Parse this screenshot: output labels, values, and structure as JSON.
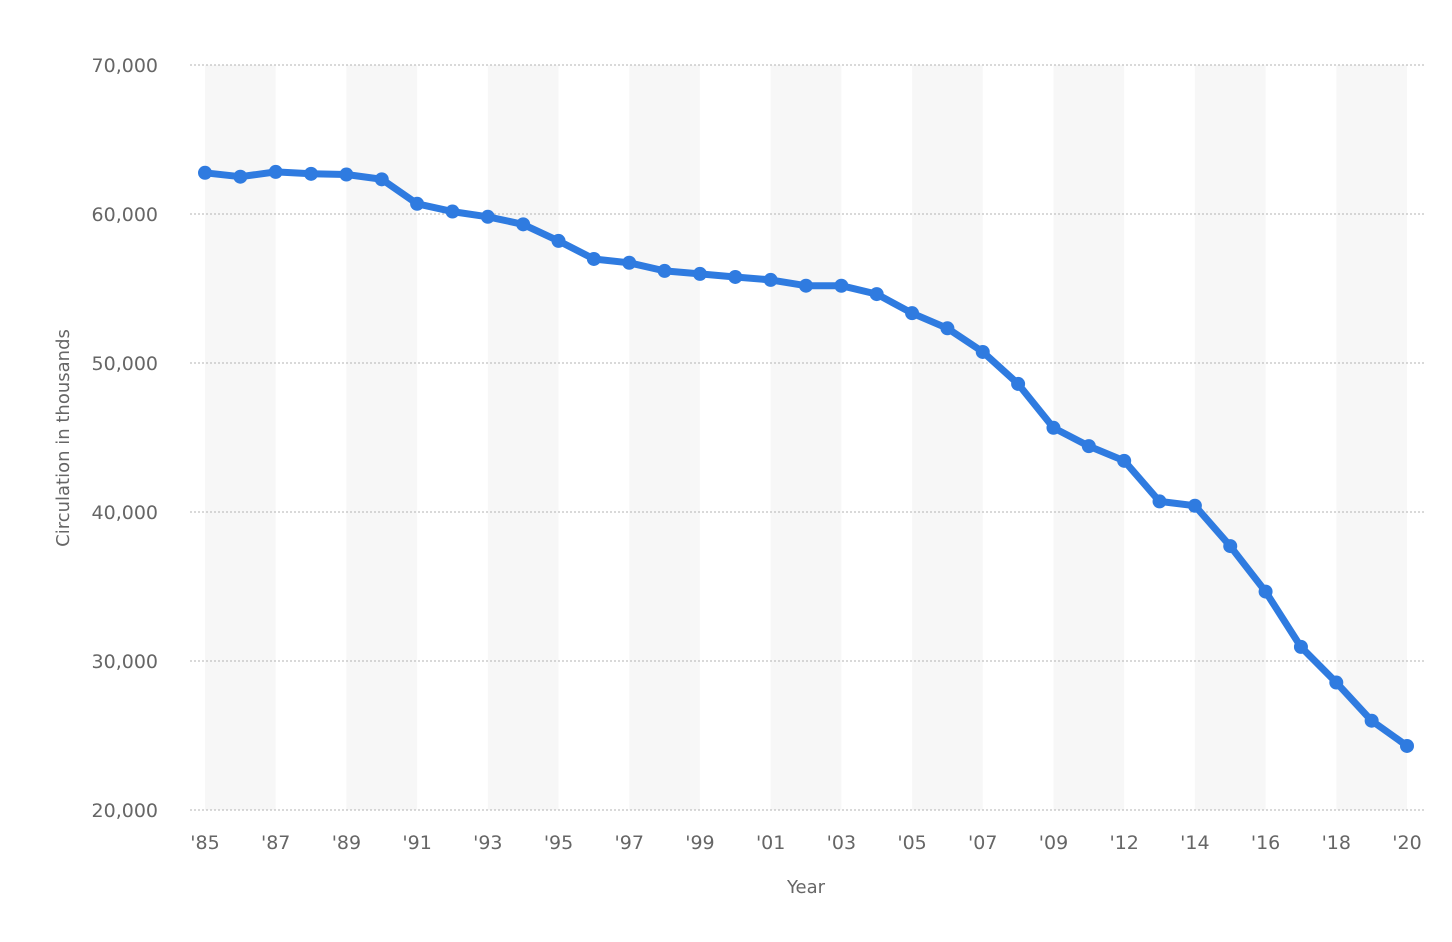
{
  "chart_data": {
    "type": "line",
    "xlabel": "Year",
    "ylabel": "Circulation in thousands",
    "ylim": [
      20000,
      70000
    ],
    "yticks": [
      20000,
      30000,
      40000,
      50000,
      60000,
      70000
    ],
    "ytick_labels": [
      "20,000",
      "30,000",
      "40,000",
      "50,000",
      "60,000",
      "70,000"
    ],
    "grid": true,
    "alternating_bands": true,
    "legend": "none",
    "color": "#2f7be0",
    "categories": [
      "'85",
      "'86",
      "'87",
      "'88",
      "'89",
      "'90",
      "'91",
      "'92",
      "'93",
      "'94",
      "'95",
      "'96",
      "'97",
      "'98",
      "'99",
      "'00",
      "'01",
      "'02",
      "'03",
      "'04",
      "'05",
      "'06",
      "'07",
      "'08",
      "'09",
      "'10",
      "'12",
      "'13",
      "'14",
      "'15",
      "'16",
      "'17",
      "'18",
      "'19",
      "'20"
    ],
    "xtick_labels": [
      "'85",
      "'87",
      "'89",
      "'91",
      "'93",
      "'95",
      "'97",
      "'99",
      "'01",
      "'03",
      "'05",
      "'07",
      "'09",
      "'12",
      "'14",
      "'16",
      "'18",
      "'20"
    ],
    "series": [
      {
        "values": [
          62766,
          62502,
          62826,
          62695,
          62649,
          62328,
          60687,
          60164,
          59812,
          59305,
          58193,
          56983,
          56728,
          56182,
          55979,
          55773,
          55578,
          55186,
          55185,
          54626,
          53345,
          52329,
          50742,
          48597,
          45653,
          44421,
          43433,
          40712,
          40420,
          37711,
          34657,
          30948,
          28554,
          25993,
          24299
        ]
      }
    ]
  }
}
